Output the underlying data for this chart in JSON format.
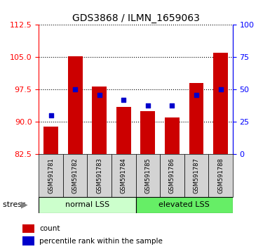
{
  "title": "GDS3868 / ILMN_1659063",
  "samples": [
    "GSM591781",
    "GSM591782",
    "GSM591783",
    "GSM591784",
    "GSM591785",
    "GSM591786",
    "GSM591787",
    "GSM591788"
  ],
  "counts": [
    89.0,
    105.2,
    98.2,
    93.5,
    92.5,
    91.0,
    99.0,
    106.0
  ],
  "percentiles": [
    30,
    50,
    46,
    42,
    38,
    38,
    46,
    50
  ],
  "ymin": 82.5,
  "ymax": 112.5,
  "yticks": [
    82.5,
    90,
    97.5,
    105,
    112.5
  ],
  "y2min": 0,
  "y2max": 100,
  "y2ticks": [
    0,
    25,
    50,
    75,
    100
  ],
  "bar_color": "#cc0000",
  "pct_color": "#0000cc",
  "normal_bg": "#ccffcc",
  "elevated_bg": "#66ee66",
  "sample_bg": "#d3d3d3",
  "bar_bottom": 82.5,
  "bar_width": 0.6
}
